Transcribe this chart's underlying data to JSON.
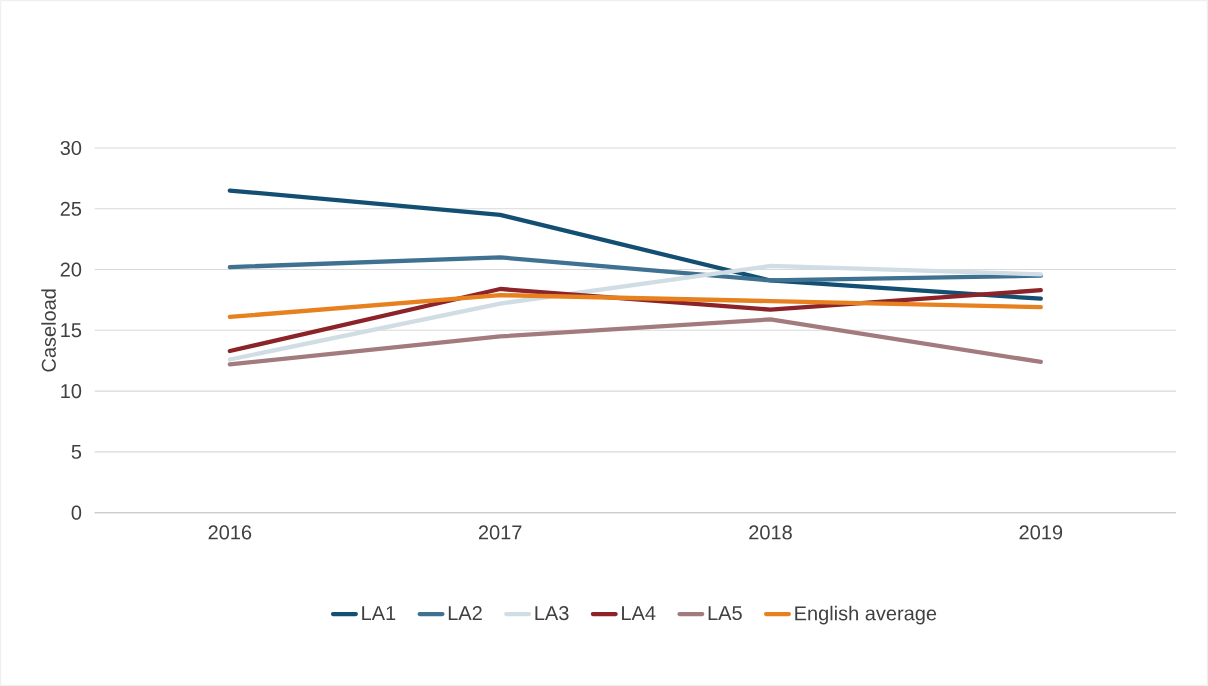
{
  "chart_data": {
    "type": "line",
    "ylabel": "Caseload",
    "categories": [
      "2016",
      "2017",
      "2018",
      "2019"
    ],
    "series": [
      {
        "name": "LA1",
        "color": "#124f73",
        "values": [
          26.5,
          24.5,
          19.1,
          17.6
        ]
      },
      {
        "name": "LA2",
        "color": "#3f7191",
        "values": [
          20.2,
          21.0,
          19.1,
          19.5
        ]
      },
      {
        "name": "LA3",
        "color": "#d0dde4",
        "values": [
          12.6,
          17.2,
          20.3,
          19.6
        ]
      },
      {
        "name": "LA4",
        "color": "#8b2329",
        "values": [
          13.3,
          18.4,
          16.7,
          18.3
        ]
      },
      {
        "name": "LA5",
        "color": "#a37b7e",
        "values": [
          12.2,
          14.5,
          15.9,
          12.4
        ]
      },
      {
        "name": "English average",
        "color": "#e7801f",
        "values": [
          16.1,
          17.9,
          17.4,
          16.9
        ]
      }
    ],
    "ylim": [
      0,
      30
    ],
    "yticks": [
      0,
      5,
      10,
      15,
      20,
      25,
      30
    ],
    "grid": "y",
    "legend": "bottom",
    "marker": "none",
    "line_style": "solid"
  }
}
